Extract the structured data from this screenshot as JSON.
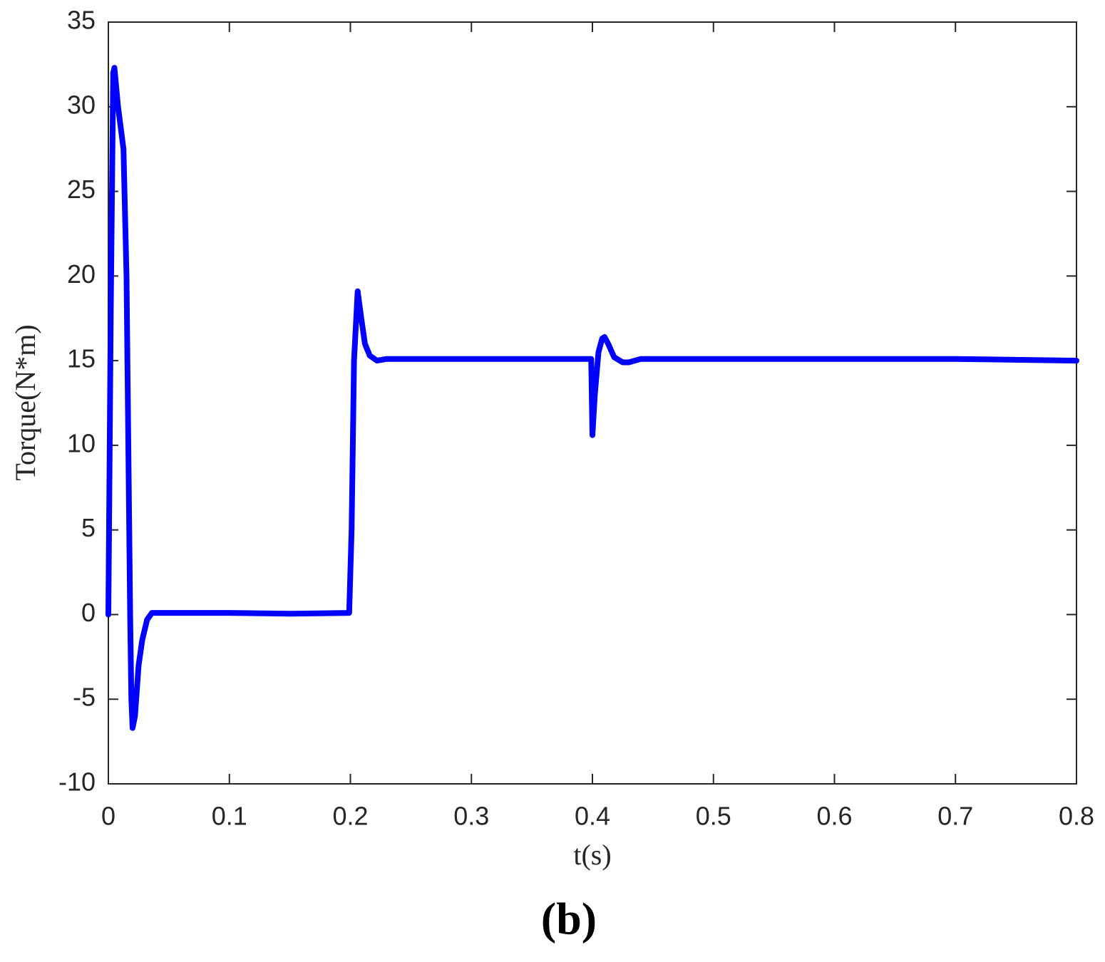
{
  "chart_data": {
    "type": "line",
    "x_label": "t(s)",
    "y_label": "Torque(N*m)",
    "caption": "(b)",
    "x": [
      0,
      0.002,
      0.004,
      0.005,
      0.008,
      0.0125,
      0.015,
      0.018,
      0.019,
      0.02,
      0.022,
      0.025,
      0.028,
      0.032,
      0.036,
      0.04,
      0.1,
      0.15,
      0.199,
      0.201,
      0.203,
      0.206,
      0.209,
      0.212,
      0.216,
      0.222,
      0.23,
      0.3,
      0.399,
      0.4,
      0.402,
      0.405,
      0.408,
      0.41,
      0.413,
      0.418,
      0.425,
      0.43,
      0.44,
      0.5,
      0.6,
      0.7,
      0.8
    ],
    "series": [
      {
        "color": "#0000ff",
        "values": [
          0,
          18,
          32,
          32.3,
          30,
          27.5,
          20,
          0,
          -5,
          -6.7,
          -6,
          -3,
          -1.5,
          -0.3,
          0.1,
          0.1,
          0.1,
          0.05,
          0.1,
          5,
          15,
          19.1,
          17.5,
          16,
          15.3,
          15,
          15.1,
          15.1,
          15.1,
          10.6,
          13,
          15.5,
          16.3,
          16.4,
          16,
          15.2,
          14.9,
          14.9,
          15.1,
          15.1,
          15.1,
          15.1,
          15
        ]
      }
    ],
    "xlim": [
      0,
      0.8
    ],
    "xticks": [
      0,
      0.1,
      0.2,
      0.3,
      0.4,
      0.5,
      0.6,
      0.7,
      0.8
    ],
    "ylim": [
      -10,
      35
    ],
    "yticks": [
      -10,
      -5,
      0,
      5,
      10,
      15,
      20,
      25,
      30,
      35
    ]
  }
}
